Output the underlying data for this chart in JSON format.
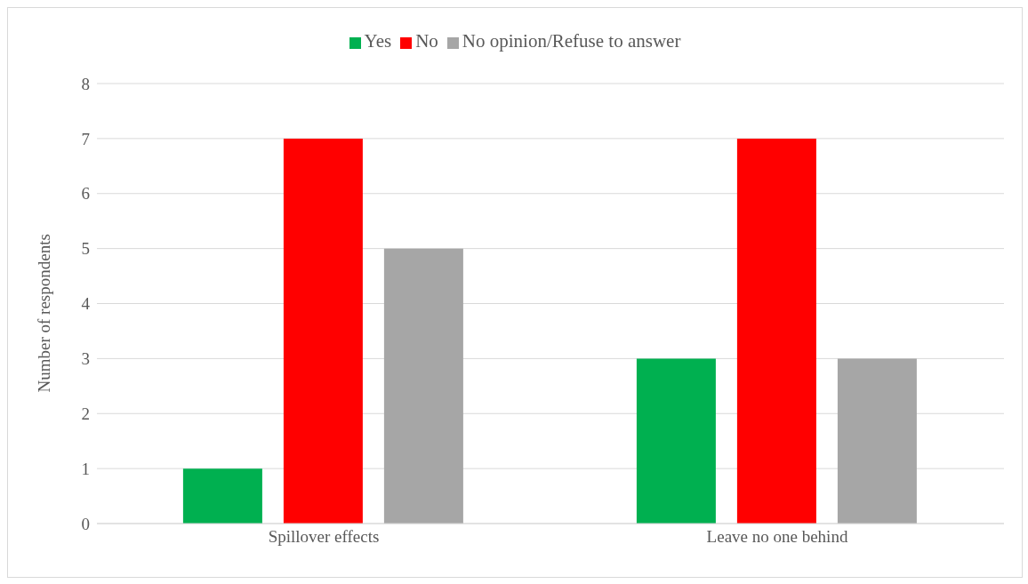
{
  "chart_data": {
    "type": "bar",
    "ylabel": "Number of respondents",
    "categories": [
      "Spillover effects",
      "Leave no one behind"
    ],
    "series": [
      {
        "name": "Yes",
        "color": "#00b050",
        "values": [
          1,
          3
        ]
      },
      {
        "name": "No",
        "color": "#ff0000",
        "values": [
          7,
          7
        ]
      },
      {
        "name": "No opinion/Refuse to answer",
        "color": "#a6a6a6",
        "values": [
          5,
          3
        ]
      }
    ],
    "ylim": [
      0,
      8
    ],
    "yticks": [
      0,
      1,
      2,
      3,
      4,
      5,
      6,
      7,
      8
    ],
    "grid": "y",
    "legend": "top"
  }
}
